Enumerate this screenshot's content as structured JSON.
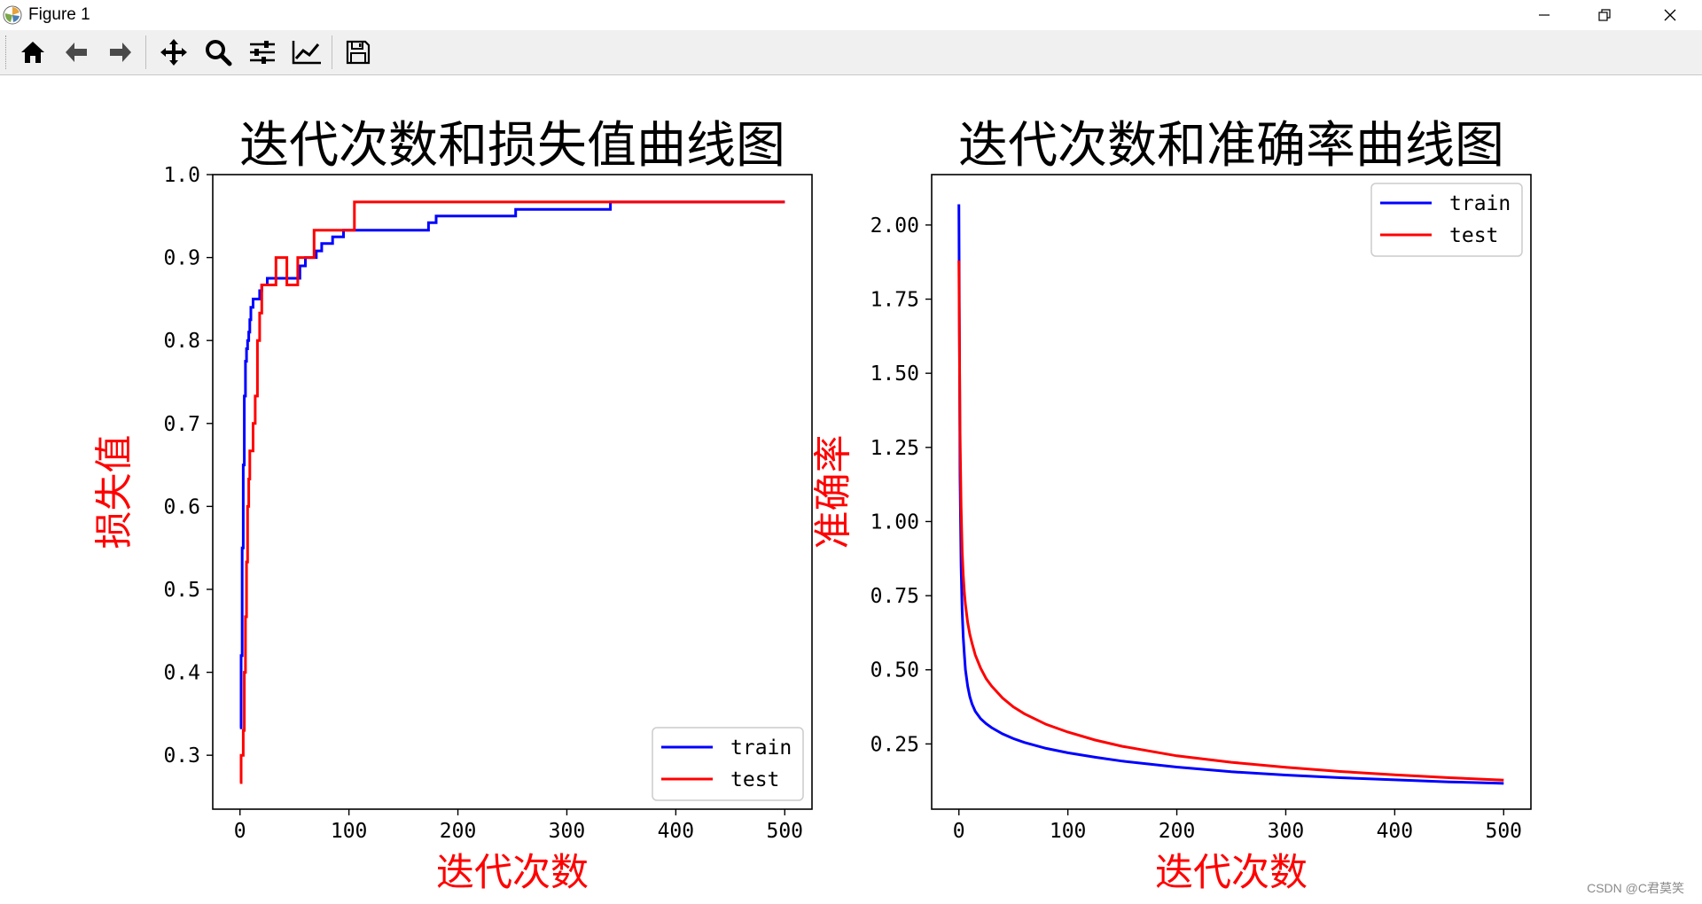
{
  "window": {
    "title": "Figure 1",
    "controls": [
      "minimize-icon",
      "restore-icon",
      "close-icon"
    ]
  },
  "toolbar": {
    "buttons": [
      "home-icon",
      "back-arrow-icon",
      "forward-arrow-icon",
      "pan-move-icon",
      "zoom-magnifier-icon",
      "subplots-sliders-icon",
      "edit-axes-chart-icon",
      "save-floppy-icon"
    ]
  },
  "watermark": "CSDN @C君莫笑",
  "colors": {
    "train": "#0000ff",
    "test": "#ff0000",
    "axis_label": "#ff0000"
  },
  "chart_data": [
    {
      "type": "line",
      "title": "迭代次数和损失值曲线图",
      "xlabel": "迭代次数",
      "ylabel": "损失值",
      "xlim": [
        -25,
        525
      ],
      "ylim": [
        0.235,
        1.0
      ],
      "xticks": [
        0,
        100,
        200,
        300,
        400,
        500
      ],
      "xtick_labels": [
        "0",
        "100",
        "200",
        "300",
        "400",
        "500"
      ],
      "yticks": [
        0.3,
        0.4,
        0.5,
        0.6,
        0.7,
        0.8,
        0.9,
        1.0
      ],
      "ytick_labels": [
        "0.3",
        "0.4",
        "0.5",
        "0.6",
        "0.7",
        "0.8",
        "0.9",
        "1.0"
      ],
      "legend": "lower-right",
      "grid": false,
      "series": [
        {
          "name": "train",
          "color": "#0000ff",
          "step": true,
          "x": [
            0,
            1,
            2,
            3,
            4,
            5,
            6,
            7,
            8,
            9,
            10,
            12,
            15,
            18,
            20,
            25,
            30,
            50,
            55,
            60,
            70,
            75,
            80,
            85,
            90,
            95,
            100,
            170,
            173,
            178,
            180,
            250,
            253,
            337,
            340,
            500
          ],
          "y": [
            0.333,
            0.42,
            0.55,
            0.65,
            0.733,
            0.775,
            0.79,
            0.8,
            0.81,
            0.825,
            0.84,
            0.85,
            0.85,
            0.86,
            0.867,
            0.875,
            0.875,
            0.875,
            0.89,
            0.9,
            0.908,
            0.917,
            0.917,
            0.925,
            0.925,
            0.933,
            0.933,
            0.933,
            0.942,
            0.942,
            0.95,
            0.95,
            0.958,
            0.958,
            0.967,
            0.967
          ]
        },
        {
          "name": "test",
          "color": "#ff0000",
          "step": true,
          "x": [
            0,
            1,
            2,
            3,
            4,
            5,
            6,
            7,
            8,
            9,
            10,
            12,
            14,
            16,
            18,
            20,
            25,
            33,
            35,
            43,
            45,
            53,
            55,
            63,
            68,
            70,
            105,
            108,
            500
          ],
          "y": [
            0.267,
            0.3,
            0.3,
            0.33,
            0.4,
            0.467,
            0.533,
            0.6,
            0.633,
            0.667,
            0.667,
            0.7,
            0.733,
            0.8,
            0.833,
            0.867,
            0.867,
            0.9,
            0.9,
            0.867,
            0.867,
            0.9,
            0.9,
            0.9,
            0.933,
            0.933,
            0.967,
            0.967,
            0.967
          ]
        }
      ]
    },
    {
      "type": "line",
      "title": "迭代次数和准确率曲线图",
      "xlabel": "迭代次数",
      "ylabel": "准确率",
      "xlim": [
        -25,
        525
      ],
      "ylim": [
        0.03,
        2.17
      ],
      "xticks": [
        0,
        100,
        200,
        300,
        400,
        500
      ],
      "xtick_labels": [
        "0",
        "100",
        "200",
        "300",
        "400",
        "500"
      ],
      "yticks": [
        0.25,
        0.5,
        0.75,
        1.0,
        1.25,
        1.5,
        1.75,
        2.0
      ],
      "ytick_labels": [
        "0.25",
        "0.50",
        "0.75",
        "1.00",
        "1.25",
        "1.50",
        "1.75",
        "2.00"
      ],
      "legend": "upper-right",
      "grid": false,
      "series": [
        {
          "name": "train",
          "color": "#0000ff",
          "x": [
            0,
            1,
            2,
            3,
            4,
            5,
            6,
            8,
            10,
            12,
            15,
            20,
            25,
            30,
            40,
            50,
            60,
            80,
            100,
            125,
            150,
            200,
            250,
            300,
            350,
            400,
            450,
            500
          ],
          "y": [
            2.07,
            1.15,
            0.85,
            0.7,
            0.61,
            0.55,
            0.5,
            0.445,
            0.41,
            0.385,
            0.36,
            0.335,
            0.318,
            0.305,
            0.284,
            0.268,
            0.255,
            0.235,
            0.22,
            0.205,
            0.192,
            0.172,
            0.156,
            0.145,
            0.136,
            0.129,
            0.122,
            0.117
          ]
        },
        {
          "name": "test",
          "color": "#ff0000",
          "x": [
            0,
            1,
            2,
            3,
            4,
            5,
            6,
            8,
            10,
            12,
            15,
            20,
            25,
            30,
            40,
            50,
            60,
            80,
            100,
            125,
            150,
            200,
            250,
            300,
            350,
            400,
            450,
            500
          ],
          "y": [
            1.88,
            1.3,
            1.05,
            0.9,
            0.82,
            0.76,
            0.72,
            0.66,
            0.62,
            0.59,
            0.55,
            0.505,
            0.47,
            0.445,
            0.405,
            0.375,
            0.352,
            0.316,
            0.29,
            0.263,
            0.242,
            0.21,
            0.188,
            0.171,
            0.157,
            0.146,
            0.136,
            0.128
          ]
        }
      ]
    }
  ]
}
